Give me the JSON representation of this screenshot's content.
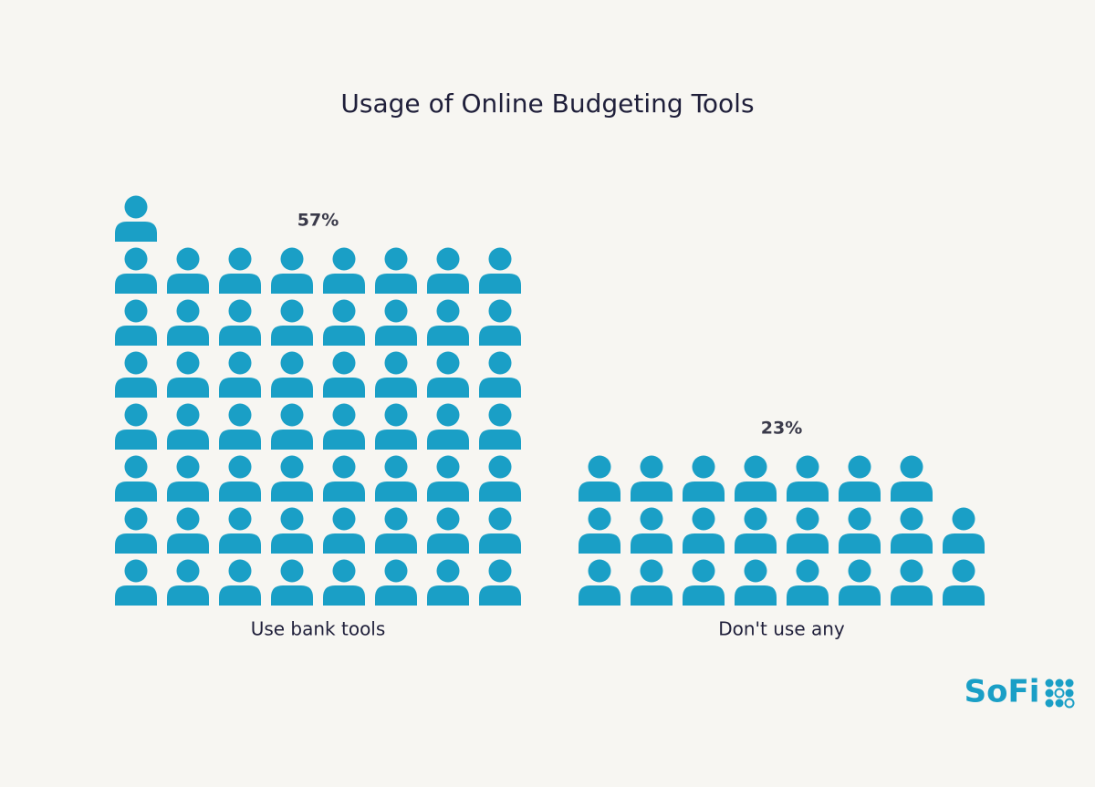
{
  "chart_data": {
    "type": "pictogram",
    "title": "Usage of Online Budgeting Tools",
    "categories": [
      "Use bank tools",
      "Don't use any"
    ],
    "values": [
      57,
      23
    ],
    "value_labels": [
      "57%",
      "23%"
    ],
    "color": "#1a9fc6",
    "brand": "SoFi"
  }
}
